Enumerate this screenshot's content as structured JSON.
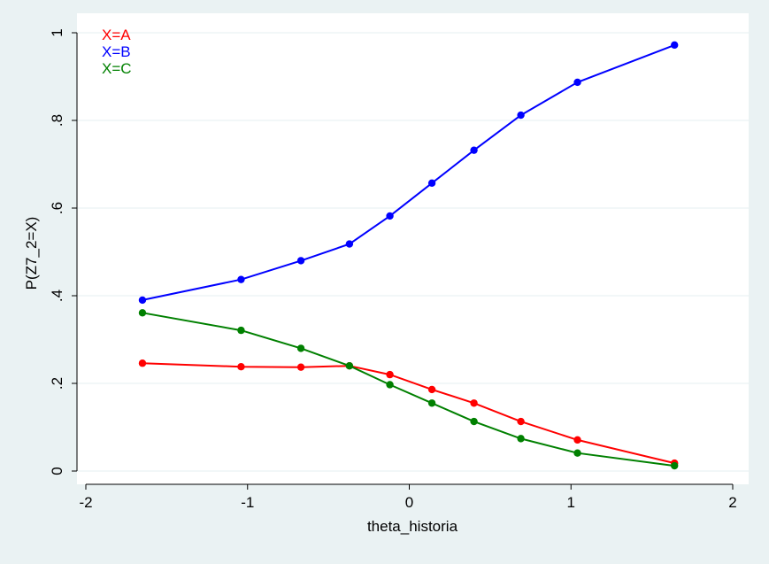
{
  "chart_data": {
    "type": "line",
    "xlabel": "theta_historia",
    "ylabel": "P(Z7_2=X)",
    "xlim": [
      -2,
      2
    ],
    "ylim": [
      0,
      1
    ],
    "xticks": [
      -2,
      -1,
      0,
      1,
      2
    ],
    "xtick_labels": [
      "-2",
      "-1",
      "0",
      "1",
      "2"
    ],
    "yticks": [
      0,
      0.2,
      0.4,
      0.6,
      0.8,
      1
    ],
    "ytick_labels": [
      "0",
      ".2",
      ".4",
      ".6",
      ".8",
      "1"
    ],
    "grid": true,
    "legend_position": "top-left",
    "x": [
      -1.65,
      -1.04,
      -0.67,
      -0.37,
      -0.12,
      0.14,
      0.4,
      0.69,
      1.04,
      1.64
    ],
    "series": [
      {
        "name": "X=A",
        "color": "#ff0000",
        "values": [
          0.246,
          0.238,
          0.237,
          0.24,
          0.22,
          0.186,
          0.155,
          0.113,
          0.071,
          0.018
        ]
      },
      {
        "name": "X=B",
        "color": "#0000ff",
        "values": [
          0.39,
          0.437,
          0.48,
          0.518,
          0.582,
          0.657,
          0.732,
          0.812,
          0.887,
          0.972
        ]
      },
      {
        "name": "X=C",
        "color": "#008000",
        "values": [
          0.361,
          0.321,
          0.28,
          0.24,
          0.197,
          0.155,
          0.113,
          0.074,
          0.041,
          0.012
        ]
      }
    ]
  }
}
